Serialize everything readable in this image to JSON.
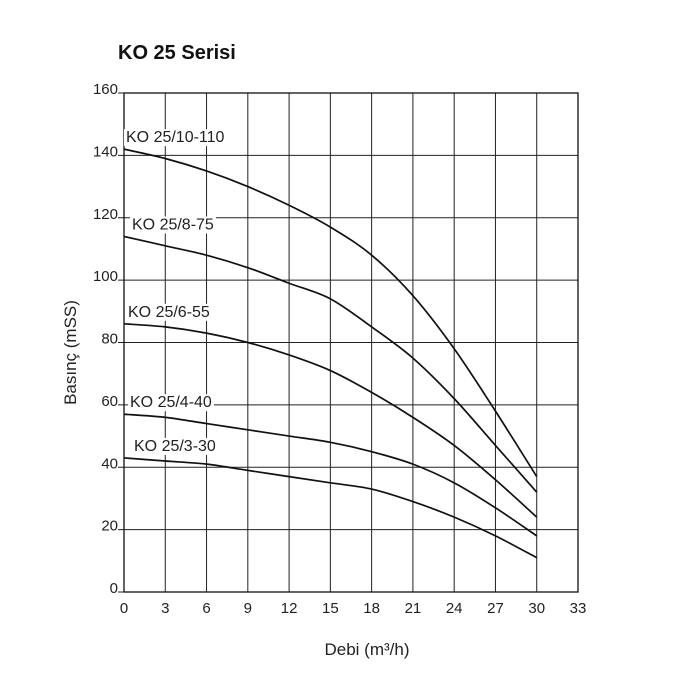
{
  "chart_data": {
    "type": "line",
    "title": "KO 25 Serisi",
    "xlabel": "Debi (m³/h)",
    "ylabel": "Basınç (mSS)",
    "xlim": [
      0,
      33
    ],
    "ylim": [
      0,
      160
    ],
    "xticks": [
      0,
      3,
      6,
      9,
      12,
      15,
      18,
      21,
      24,
      27,
      30,
      33
    ],
    "yticks": [
      0,
      20,
      40,
      60,
      80,
      100,
      120,
      140,
      160
    ],
    "grid": true,
    "series": [
      {
        "name": "KO 25/10-110",
        "x": [
          0,
          3,
          6,
          9,
          12,
          15,
          18,
          21,
          24,
          27,
          30
        ],
        "y": [
          142,
          139,
          135,
          130,
          124,
          117,
          108,
          95,
          78,
          58,
          37
        ]
      },
      {
        "name": "KO 25/8-75",
        "x": [
          0,
          3,
          6,
          9,
          12,
          15,
          18,
          21,
          24,
          27,
          30
        ],
        "y": [
          114,
          111,
          108,
          104,
          99,
          94,
          85,
          75,
          62,
          47,
          32
        ]
      },
      {
        "name": "KO 25/6-55",
        "x": [
          0,
          3,
          6,
          9,
          12,
          15,
          18,
          21,
          24,
          27,
          30
        ],
        "y": [
          86,
          85,
          83,
          80,
          76,
          71,
          64,
          56,
          47,
          36,
          24
        ]
      },
      {
        "name": "KO 25/4-40",
        "x": [
          0,
          3,
          6,
          9,
          12,
          15,
          18,
          21,
          24,
          27,
          30
        ],
        "y": [
          57,
          56,
          54,
          52,
          50,
          48,
          45,
          41,
          35,
          27,
          18
        ]
      },
      {
        "name": "KO 25/3-30",
        "x": [
          0,
          3,
          6,
          9,
          12,
          15,
          18,
          21,
          24,
          27,
          30
        ],
        "y": [
          43,
          42,
          41,
          39,
          37,
          35,
          33,
          29,
          24,
          18,
          11
        ]
      }
    ]
  }
}
